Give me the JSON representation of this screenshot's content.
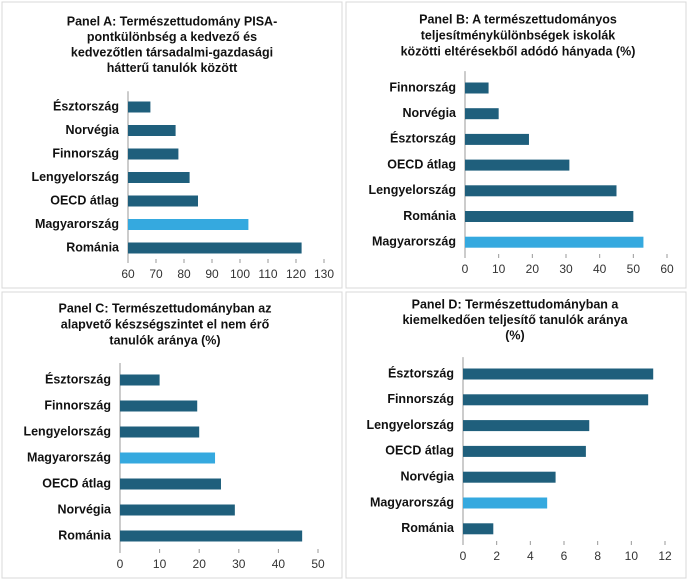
{
  "chart_data": [
    {
      "type": "bar",
      "orientation": "horizontal",
      "title": [
        "Panel A: Természettudomány PISA-",
        "pontkülönbség a kedvező és",
        "kedvezőtlen társadalmi-gazdasági",
        "hátterű tanulók között"
      ],
      "categories": [
        "Észtország",
        "Norvégia",
        "Finnország",
        "Lengyelország",
        "OECD átlag",
        "Magyarország",
        "Románia"
      ],
      "values": [
        68,
        77,
        78,
        82,
        85,
        103,
        122
      ],
      "colors": [
        "#1f5f7c",
        "#1f5f7c",
        "#1f5f7c",
        "#1f5f7c",
        "#1f5f7c",
        "#35a9df",
        "#1f5f7c"
      ],
      "xlim": [
        60,
        130
      ],
      "xticks": [
        60,
        70,
        80,
        90,
        100,
        110,
        120,
        130
      ]
    },
    {
      "type": "bar",
      "orientation": "horizontal",
      "title": [
        "Panel B: A természettudományos",
        "teljesítménykülönbségek iskolák",
        "közötti eltérésekből adódó hányada (%)"
      ],
      "categories": [
        "Finnország",
        "Norvégia",
        "Észtország",
        "OECD átlag",
        "Lengyelország",
        "Románia",
        "Magyarország"
      ],
      "values": [
        7,
        10,
        19,
        31,
        45,
        50,
        53
      ],
      "colors": [
        "#1f5f7c",
        "#1f5f7c",
        "#1f5f7c",
        "#1f5f7c",
        "#1f5f7c",
        "#1f5f7c",
        "#35a9df"
      ],
      "xlim": [
        0,
        60
      ],
      "xticks": [
        0,
        10,
        20,
        30,
        40,
        50,
        60
      ]
    },
    {
      "type": "bar",
      "orientation": "horizontal",
      "title": [
        "Panel C: Természettudományban az",
        "alapvető készségszintet el nem érő",
        "tanulók aránya (%)"
      ],
      "categories": [
        "Észtország",
        "Finnország",
        "Lengyelország",
        "Magyarország",
        "OECD átlag",
        "Norvégia",
        "Románia"
      ],
      "values": [
        10,
        19.5,
        20,
        24,
        25.5,
        29,
        46
      ],
      "colors": [
        "#1f5f7c",
        "#1f5f7c",
        "#1f5f7c",
        "#35a9df",
        "#1f5f7c",
        "#1f5f7c",
        "#1f5f7c"
      ],
      "xlim": [
        0,
        50
      ],
      "xticks": [
        0,
        10,
        20,
        30,
        40,
        50
      ]
    },
    {
      "type": "bar",
      "orientation": "horizontal",
      "title": [
        "Panel D: Természettudományban a",
        "kiemelkedően teljesítő tanulók aránya",
        "(%)"
      ],
      "categories": [
        "Észtország",
        "Finnország",
        "Lengyelország",
        "OECD átlag",
        "Norvégia",
        "Magyarország",
        "Románia"
      ],
      "values": [
        11.3,
        11,
        7.5,
        7.3,
        5.5,
        5,
        1.8
      ],
      "colors": [
        "#1f5f7c",
        "#1f5f7c",
        "#1f5f7c",
        "#1f5f7c",
        "#1f5f7c",
        "#35a9df",
        "#1f5f7c"
      ],
      "xlim": [
        0,
        12
      ],
      "xticks": [
        0,
        2,
        4,
        6,
        8,
        10,
        12
      ]
    }
  ]
}
